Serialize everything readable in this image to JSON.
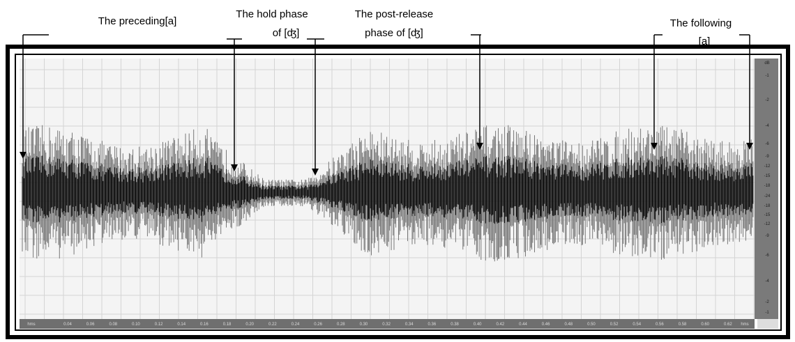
{
  "annotations": [
    {
      "lines": [
        "The preceding[a]"
      ]
    },
    {
      "lines": [
        "The hold phase",
        "of [ʤ]"
      ]
    },
    {
      "lines": [
        "The post-release",
        "phase of [ʤ]"
      ]
    },
    {
      "lines": [
        "The following",
        "[a]"
      ]
    }
  ],
  "time_axis": {
    "start": "hms",
    "labels": [
      "0.04",
      "0.06",
      "0.08",
      "0.10",
      "0.12",
      "0.14",
      "0.16",
      "0.18",
      "0.20",
      "0.22",
      "0.24",
      "0.26",
      "0.28",
      "0.30",
      "0.32",
      "0.34",
      "0.36",
      "0.38",
      "0.40",
      "0.42",
      "0.44",
      "0.46",
      "0.48",
      "0.50",
      "0.52",
      "0.54",
      "0.56",
      "0.58",
      "0.60",
      "0.62"
    ],
    "end": "hms"
  },
  "db_axis": {
    "labels": [
      "dB",
      "-1",
      "-2",
      "-4",
      "-6",
      "-9",
      "-12",
      "-15",
      "-18",
      "-24",
      "-18",
      "-15",
      "-12",
      "-9",
      "-6",
      "-4",
      "-2",
      "-1"
    ]
  }
}
